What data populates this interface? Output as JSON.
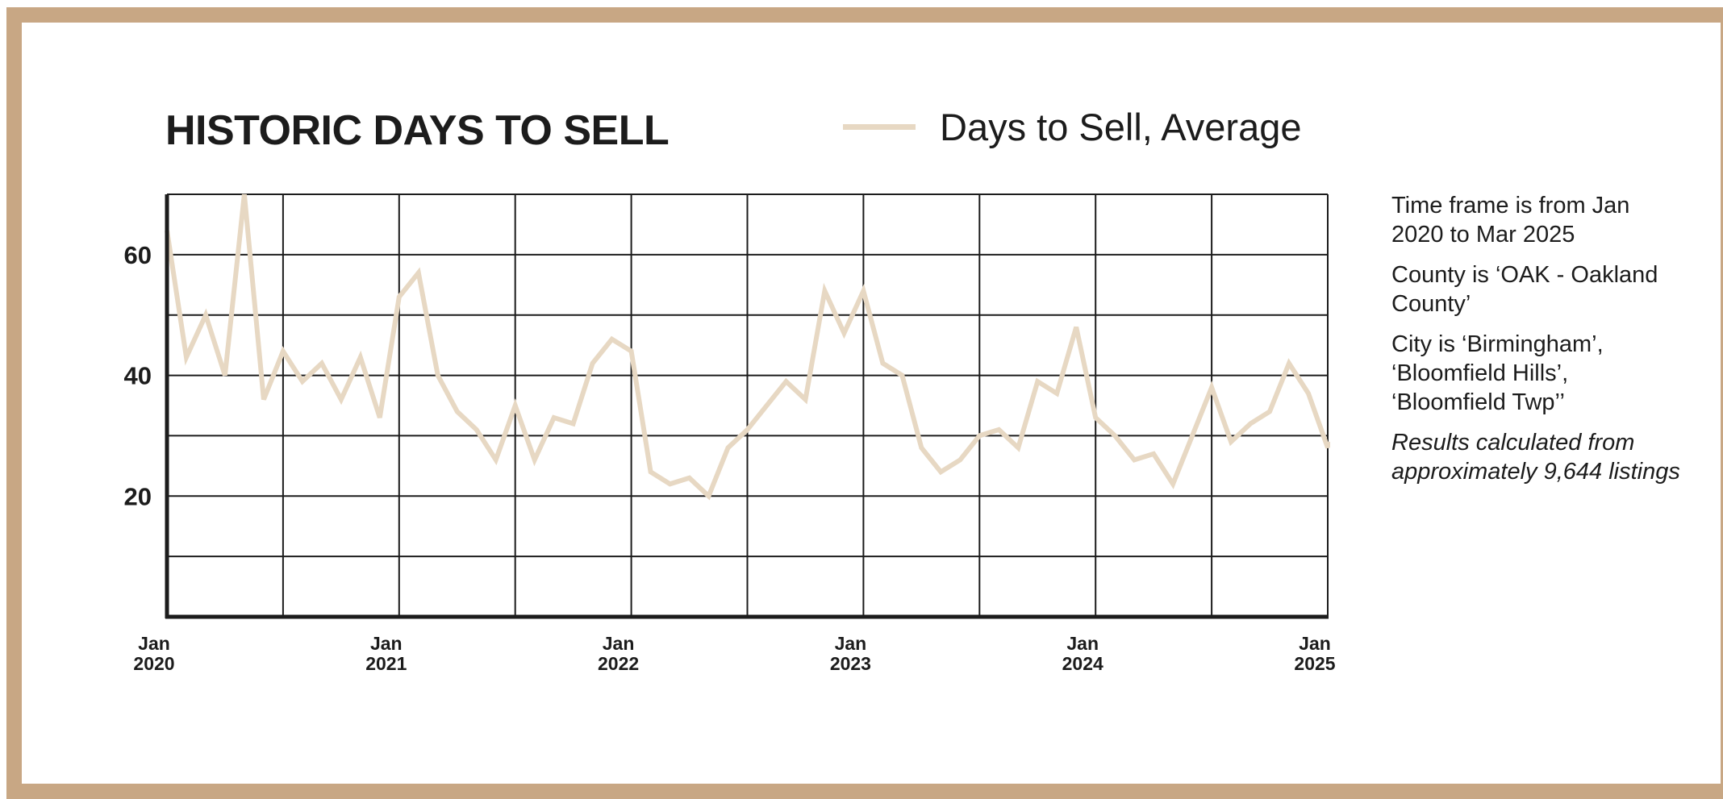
{
  "colors": {
    "frame": "#c8a784",
    "line": "#e7d8c3",
    "grid": "#1c1c1c",
    "text": "#1c1c1c"
  },
  "chart_data": {
    "type": "line",
    "title": "HISTORIC DAYS TO SELL",
    "xlabel": "",
    "ylabel": "",
    "legend": "top-center",
    "grid": true,
    "ylim": [
      0,
      70
    ],
    "yticks": [
      20,
      40,
      60
    ],
    "xlim": [
      "2020-01",
      "2025-01"
    ],
    "xticks": [
      {
        "top": "Jan",
        "bottom": "2020",
        "date": "2020-01"
      },
      {
        "top": "Jan",
        "bottom": "2021",
        "date": "2021-01"
      },
      {
        "top": "Jan",
        "bottom": "2022",
        "date": "2022-01"
      },
      {
        "top": "Jan",
        "bottom": "2023",
        "date": "2023-01"
      },
      {
        "top": "Jan",
        "bottom": "2024",
        "date": "2024-01"
      },
      {
        "top": "Jan",
        "bottom": "2025",
        "date": "2025-01"
      }
    ],
    "series": [
      {
        "name": "Days to Sell, Average",
        "x": [
          "2020-01",
          "2020-02",
          "2020-03",
          "2020-04",
          "2020-05",
          "2020-06",
          "2020-07",
          "2020-08",
          "2020-09",
          "2020-10",
          "2020-11",
          "2020-12",
          "2021-01",
          "2021-02",
          "2021-03",
          "2021-04",
          "2021-05",
          "2021-06",
          "2021-07",
          "2021-08",
          "2021-09",
          "2021-10",
          "2021-11",
          "2021-12",
          "2022-01",
          "2022-02",
          "2022-03",
          "2022-04",
          "2022-05",
          "2022-06",
          "2022-07",
          "2022-08",
          "2022-09",
          "2022-10",
          "2022-11",
          "2022-12",
          "2023-01",
          "2023-02",
          "2023-03",
          "2023-04",
          "2023-05",
          "2023-06",
          "2023-07",
          "2023-08",
          "2023-09",
          "2023-10",
          "2023-11",
          "2023-12",
          "2024-01",
          "2024-02",
          "2024-03",
          "2024-04",
          "2024-05",
          "2024-06",
          "2024-07",
          "2024-08",
          "2024-09",
          "2024-10",
          "2024-11",
          "2024-12",
          "2025-01",
          "2025-02",
          "2025-03"
        ],
        "values": [
          64,
          43,
          50,
          40,
          70,
          36,
          44,
          39,
          42,
          36,
          43,
          33,
          53,
          57,
          40,
          34,
          31,
          26,
          35,
          26,
          33,
          32,
          42,
          46,
          44,
          24,
          22,
          23,
          20,
          28,
          31,
          35,
          39,
          36,
          54,
          47,
          54,
          42,
          40,
          28,
          24,
          26,
          30,
          31,
          28,
          39,
          37,
          48,
          33,
          30,
          26,
          27,
          22,
          30,
          38,
          29,
          32,
          34,
          42,
          37,
          28,
          29,
          28
        ]
      }
    ]
  },
  "notes": {
    "timeframe": "Time frame is from Jan 2020 to Mar 2025",
    "county": "County is ‘OAK - Oakland County’",
    "city": "City is ‘Birmingham’, ‘Bloomfield Hills’, ‘Bloomfield Twp’’",
    "results": "Results calculated from approximately 9,644 listings"
  }
}
